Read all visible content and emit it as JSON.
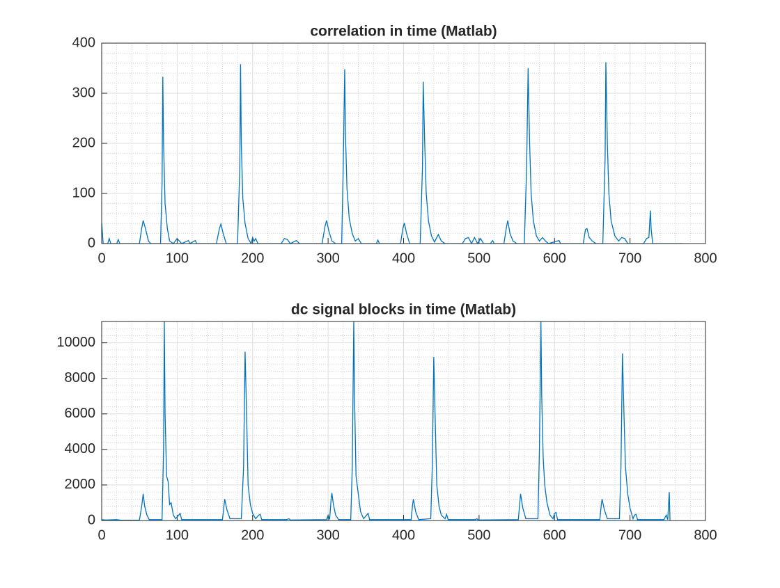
{
  "chart_data": [
    {
      "type": "line",
      "title": "correlation in time (Matlab)",
      "color": "#0072bd",
      "grid": true,
      "minor_grid": true,
      "xlim": [
        0,
        800
      ],
      "xticks": [
        0,
        100,
        200,
        300,
        400,
        500,
        600,
        700,
        800
      ],
      "ylim": [
        0,
        400
      ],
      "yticks": [
        0,
        100,
        200,
        300,
        400
      ],
      "x": [
        0,
        2,
        8,
        10,
        12,
        20,
        22,
        24,
        50,
        53,
        55,
        58,
        62,
        65,
        78,
        80,
        81,
        82,
        84,
        87,
        90,
        95,
        100,
        103,
        106,
        115,
        117,
        124,
        126,
        152,
        156,
        158,
        161,
        165,
        180,
        183,
        184,
        185,
        187,
        190,
        194,
        198,
        200,
        202,
        204,
        207,
        238,
        242,
        246,
        250,
        258,
        262,
        292,
        296,
        298,
        301,
        305,
        310,
        318,
        320,
        322,
        323,
        325,
        328,
        332,
        336,
        340,
        344,
        364,
        366,
        368,
        396,
        399,
        401,
        404,
        408,
        422,
        425,
        426,
        428,
        430,
        433,
        437,
        441,
        446,
        450,
        455,
        478,
        482,
        486,
        490,
        494,
        498,
        502,
        506,
        515,
        518,
        520,
        533,
        536,
        538,
        541,
        545,
        550,
        560,
        563,
        565,
        567,
        569,
        572,
        576,
        580,
        584,
        588,
        592,
        606,
        608,
        638,
        641,
        643,
        646,
        650,
        655,
        664,
        667,
        668,
        670,
        672,
        675,
        680,
        685,
        689,
        693,
        697,
        718,
        722,
        725,
        727,
        728,
        730,
        770
      ],
      "values": [
        42,
        0,
        0,
        10,
        0,
        0,
        8,
        0,
        0,
        30,
        46,
        30,
        5,
        0,
        0,
        120,
        333,
        200,
        80,
        30,
        5,
        0,
        10,
        5,
        0,
        6,
        0,
        6,
        0,
        0,
        30,
        39,
        20,
        0,
        0,
        150,
        358,
        200,
        90,
        40,
        10,
        0,
        12,
        5,
        10,
        0,
        0,
        10,
        8,
        0,
        6,
        0,
        0,
        35,
        46,
        25,
        5,
        0,
        0,
        150,
        348,
        220,
        110,
        50,
        20,
        5,
        10,
        0,
        0,
        7,
        0,
        0,
        30,
        41,
        20,
        0,
        0,
        150,
        323,
        200,
        100,
        45,
        15,
        3,
        18,
        5,
        0,
        0,
        10,
        12,
        0,
        12,
        0,
        10,
        0,
        0,
        6,
        0,
        0,
        30,
        46,
        20,
        5,
        0,
        0,
        150,
        350,
        200,
        100,
        45,
        15,
        5,
        12,
        5,
        0,
        6,
        0,
        0,
        28,
        30,
        12,
        5,
        0,
        0,
        170,
        362,
        200,
        100,
        45,
        15,
        5,
        12,
        10,
        0,
        0,
        10,
        12,
        66,
        30,
        0,
        0
      ]
    },
    {
      "type": "line",
      "title": "dc signal blocks in time (Matlab)",
      "color": "#0072bd",
      "grid": true,
      "minor_grid": true,
      "xlim": [
        0,
        800
      ],
      "xticks": [
        0,
        100,
        200,
        300,
        400,
        500,
        600,
        700,
        800
      ],
      "ylim": [
        0,
        11200
      ],
      "yticks": [
        0,
        2000,
        4000,
        6000,
        8000,
        10000
      ],
      "x": [
        0,
        5,
        20,
        25,
        50,
        53,
        55,
        57,
        60,
        63,
        80,
        82,
        83,
        84,
        86,
        88,
        90,
        92,
        95,
        98,
        102,
        104,
        106,
        160,
        162,
        163,
        166,
        170,
        185,
        188,
        190,
        192,
        194,
        197,
        200,
        204,
        208,
        210,
        212,
        245,
        248,
        250,
        298,
        300,
        302,
        304,
        305,
        307,
        310,
        314,
        330,
        332,
        334,
        335,
        337,
        340,
        343,
        347,
        351,
        353,
        355,
        410,
        412,
        413,
        416,
        420,
        436,
        438,
        440,
        442,
        444,
        447,
        450,
        455,
        457,
        459,
        495,
        497,
        499,
        552,
        554,
        555,
        558,
        562,
        578,
        580,
        582,
        583,
        585,
        587,
        590,
        594,
        598,
        600,
        602,
        604,
        660,
        662,
        663,
        666,
        670,
        686,
        688,
        690,
        692,
        694,
        697,
        700,
        704,
        706,
        708,
        710,
        745,
        748,
        750,
        752,
        753
      ],
      "values": [
        50,
        30,
        50,
        20,
        20,
        800,
        1500,
        800,
        300,
        50,
        50,
        4000,
        11200,
        6000,
        2500,
        2200,
        900,
        1000,
        300,
        100,
        300,
        400,
        50,
        50,
        800,
        1200,
        600,
        100,
        100,
        3000,
        9500,
        6000,
        2000,
        900,
        400,
        100,
        300,
        350,
        50,
        50,
        100,
        30,
        50,
        300,
        50,
        1200,
        1550,
        900,
        300,
        50,
        50,
        3000,
        11200,
        7000,
        2500,
        1500,
        500,
        100,
        300,
        400,
        50,
        50,
        900,
        1200,
        500,
        50,
        100,
        3000,
        9200,
        5500,
        2000,
        800,
        300,
        100,
        350,
        50,
        50,
        100,
        30,
        50,
        1000,
        1500,
        700,
        100,
        100,
        4000,
        11200,
        7000,
        3500,
        2000,
        1000,
        300,
        100,
        400,
        450,
        50,
        50,
        900,
        1200,
        600,
        100,
        100,
        3000,
        9400,
        6000,
        3000,
        1500,
        700,
        100,
        300,
        350,
        50,
        50,
        300,
        50,
        1600,
        0
      ]
    }
  ]
}
